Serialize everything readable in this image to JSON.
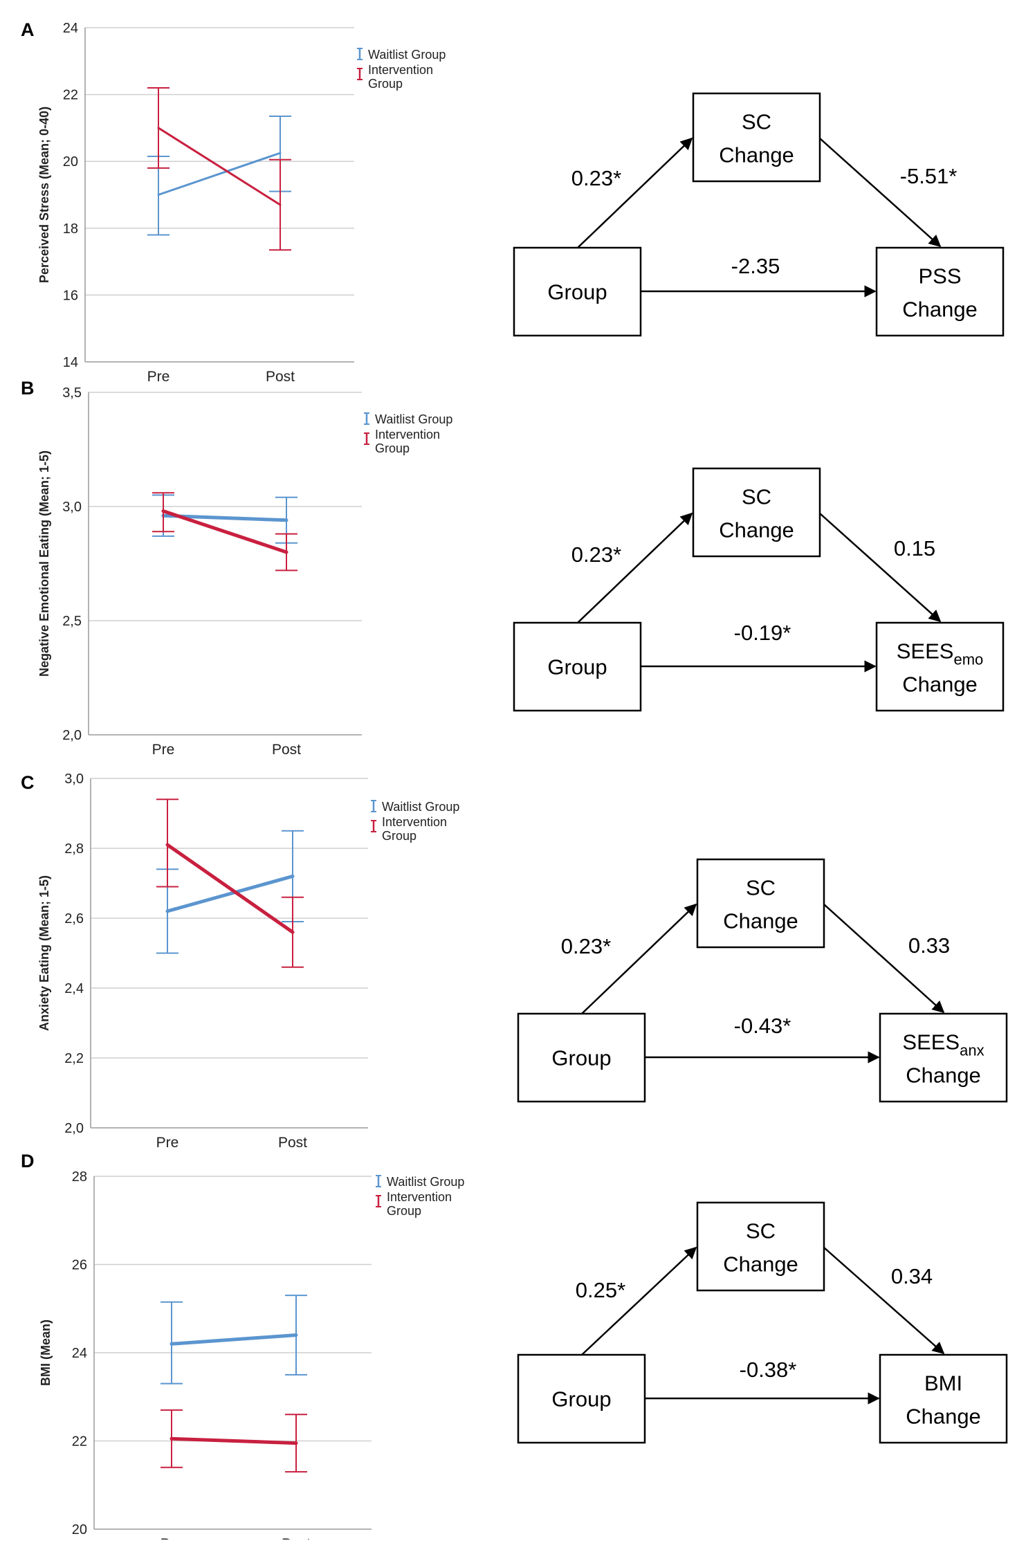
{
  "colors": {
    "waitlist": "#5b95cf",
    "intervention": "#c8203f",
    "grid": "#cfcfcf",
    "axis": "#9a9a9a",
    "text": "#222222"
  },
  "panels": [
    {
      "label": "A",
      "chart_data": {
        "type": "line",
        "ylabel": "Perceived Stress (Mean; 0-40)",
        "categories": [
          "Pre",
          "Post"
        ],
        "ylim": [
          14,
          24
        ],
        "yticks": [
          "14",
          "16",
          "18",
          "20",
          "22",
          "24"
        ],
        "legend": [
          "Waitlist Group",
          "Intervention Group"
        ],
        "series": [
          {
            "name": "Waitlist Group",
            "values": [
              19.0,
              20.25
            ],
            "err_low": [
              17.8,
              19.1
            ],
            "err_high": [
              20.15,
              21.35
            ]
          },
          {
            "name": "Intervention Group",
            "values": [
              21.0,
              18.7
            ],
            "err_low": [
              19.8,
              17.35
            ],
            "err_high": [
              22.2,
              20.05
            ]
          }
        ]
      },
      "diagram": {
        "mediator": [
          "SC",
          "Change"
        ],
        "x": "Group",
        "y": [
          "PSS",
          "Change"
        ],
        "y_sub": "",
        "a": "0.23*",
        "b": "-5.51*",
        "c": "-2.35"
      }
    },
    {
      "label": "B",
      "chart_data": {
        "type": "line",
        "ylabel": "Negative Emotional Eating (Mean; 1-5)",
        "categories": [
          "Pre",
          "Post"
        ],
        "ylim": [
          2.0,
          3.5
        ],
        "yticks": [
          "2,0",
          "2,5",
          "3,0",
          "3,5"
        ],
        "legend": [
          "Waitlist Group",
          "Intervention Group"
        ],
        "series": [
          {
            "name": "Waitlist Group",
            "values": [
              2.96,
              2.94
            ],
            "err_low": [
              2.87,
              2.84
            ],
            "err_high": [
              3.05,
              3.04
            ]
          },
          {
            "name": "Intervention Group",
            "values": [
              2.98,
              2.8
            ],
            "err_low": [
              2.89,
              2.72
            ],
            "err_high": [
              3.06,
              2.88
            ]
          }
        ]
      },
      "diagram": {
        "mediator": [
          "SC",
          "Change"
        ],
        "x": "Group",
        "y": [
          "SEES",
          "Change"
        ],
        "y_sub": "emo",
        "a": "0.23*",
        "b": "0.15",
        "c": "-0.19*"
      }
    },
    {
      "label": "C",
      "chart_data": {
        "type": "line",
        "ylabel": "Anxiety Eating (Mean; 1-5)",
        "categories": [
          "Pre",
          "Post"
        ],
        "ylim": [
          2.0,
          3.0
        ],
        "yticks": [
          "2,0",
          "2,2",
          "2,4",
          "2,6",
          "2,8",
          "3,0"
        ],
        "legend": [
          "Waitlist Group",
          "Intervention Group"
        ],
        "series": [
          {
            "name": "Waitlist Group",
            "values": [
              2.62,
              2.72
            ],
            "err_low": [
              2.5,
              2.59
            ],
            "err_high": [
              2.74,
              2.85
            ]
          },
          {
            "name": "Intervention Group",
            "values": [
              2.81,
              2.56
            ],
            "err_low": [
              2.69,
              2.46
            ],
            "err_high": [
              2.94,
              2.66
            ]
          }
        ]
      },
      "diagram": {
        "mediator": [
          "SC",
          "Change"
        ],
        "x": "Group",
        "y": [
          "SEES",
          "Change"
        ],
        "y_sub": "anx",
        "a": "0.23*",
        "b": "0.33",
        "c": "-0.43*"
      }
    },
    {
      "label": "D",
      "chart_data": {
        "type": "line",
        "ylabel": "BMI (Mean)",
        "categories": [
          "Pre",
          "Post"
        ],
        "ylim": [
          20,
          28
        ],
        "yticks": [
          "20",
          "22",
          "24",
          "26",
          "28"
        ],
        "legend": [
          "Waitlist Group",
          "Intervention Group"
        ],
        "series": [
          {
            "name": "Waitlist Group",
            "values": [
              24.2,
              24.4
            ],
            "err_low": [
              23.3,
              23.5
            ],
            "err_high": [
              25.15,
              25.3
            ]
          },
          {
            "name": "Intervention Group",
            "values": [
              22.05,
              21.95
            ],
            "err_low": [
              21.4,
              21.3
            ],
            "err_high": [
              22.7,
              22.6
            ]
          }
        ]
      },
      "diagram": {
        "mediator": [
          "SC",
          "Change"
        ],
        "x": "Group",
        "y": [
          "BMI",
          "Change"
        ],
        "y_sub": "",
        "a": "0.25*",
        "b": "0.34",
        "c": "-0.38*"
      }
    }
  ]
}
